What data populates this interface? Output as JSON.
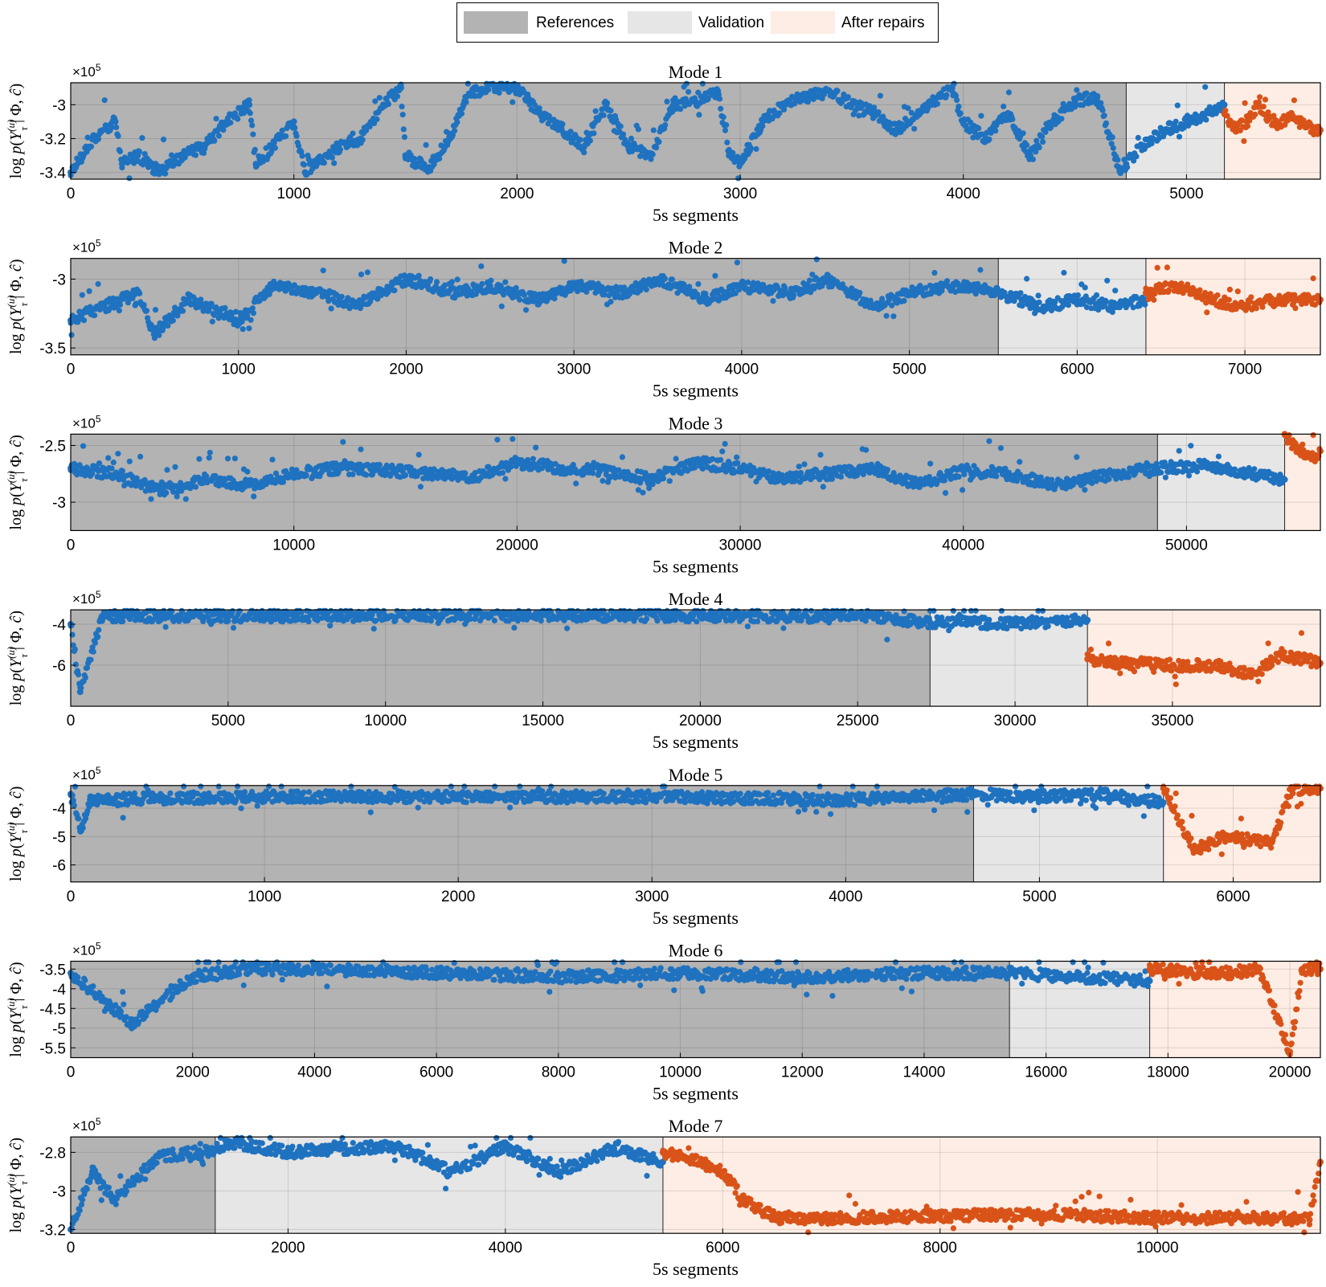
{
  "legend": {
    "references": "References",
    "validation": "Validation",
    "after_repairs": "After repairs"
  },
  "colors": {
    "references": "#b3b3b3",
    "validation": "#e6e6e6",
    "after_repairs": "#fdede4",
    "series_normal": "#1f72bf",
    "series_repaired": "#d95319"
  },
  "chart_data": [
    {
      "type": "scatter",
      "title": "Mode 1",
      "xlabel": "5s segments",
      "ylabel": "log p(Y_τ^(u) | Φ, ĉ)",
      "exponent": "×10^5",
      "xlim": [
        0,
        5600
      ],
      "ylim": [
        -3.44,
        -2.87
      ],
      "xticks": [
        0,
        1000,
        2000,
        3000,
        4000,
        5000
      ],
      "yticks": [
        -3.4,
        -3.2,
        -3.0
      ],
      "ytick_labels": [
        "-3.4",
        "-3.2",
        "-3"
      ],
      "regions": [
        {
          "name": "References",
          "from": 0,
          "to": 4730
        },
        {
          "name": "Validation",
          "from": 4730,
          "to": 5170
        },
        {
          "name": "After repairs",
          "from": 5170,
          "to": 5600
        }
      ],
      "series": [
        {
          "role": "normal",
          "x": [
            0,
            100,
            200,
            230,
            300,
            400,
            500,
            600,
            700,
            800,
            830,
            900,
            1000,
            1050,
            1100,
            1200,
            1300,
            1400,
            1480,
            1500,
            1600,
            1700,
            1760,
            1800,
            1900,
            2000,
            2100,
            2200,
            2300,
            2400,
            2500,
            2600,
            2700,
            2800,
            2900,
            2950,
            3000,
            3100,
            3200,
            3300,
            3400,
            3500,
            3600,
            3700,
            3800,
            3900,
            3950,
            4000,
            4100,
            4200,
            4300,
            4400,
            4500,
            4600,
            4700,
            4730,
            4800,
            4900,
            5000,
            5100,
            5170
          ],
          "y": [
            -3.4,
            -3.2,
            -3.1,
            -3.35,
            -3.3,
            -3.4,
            -3.3,
            -3.25,
            -3.1,
            -3.0,
            -3.35,
            -3.25,
            -3.1,
            -3.4,
            -3.35,
            -3.25,
            -3.2,
            -3.0,
            -2.9,
            -3.3,
            -3.38,
            -3.2,
            -3.0,
            -2.92,
            -2.9,
            -2.9,
            -3.05,
            -3.15,
            -3.25,
            -3.0,
            -3.25,
            -3.3,
            -3.0,
            -2.98,
            -2.92,
            -3.3,
            -3.35,
            -3.1,
            -3.0,
            -2.95,
            -2.92,
            -3.0,
            -3.05,
            -3.15,
            -3.05,
            -2.95,
            -2.9,
            -3.1,
            -3.2,
            -3.05,
            -3.3,
            -3.1,
            -2.98,
            -2.95,
            -3.38,
            -3.35,
            -3.25,
            -3.15,
            -3.1,
            -3.05,
            -3.0
          ]
        },
        {
          "role": "repaired",
          "x": [
            5170,
            5220,
            5270,
            5320,
            5370,
            5420,
            5470,
            5520,
            5570,
            5600
          ],
          "y": [
            -3.05,
            -3.15,
            -3.1,
            -3.0,
            -3.08,
            -3.12,
            -3.05,
            -3.12,
            -3.15,
            -3.15
          ]
        }
      ]
    },
    {
      "type": "scatter",
      "title": "Mode 2",
      "xlabel": "5s segments",
      "ylabel": "log p(Y_τ^(u) | Φ, ĉ)",
      "exponent": "×10^5",
      "xlim": [
        0,
        7450
      ],
      "ylim": [
        -3.55,
        -2.85
      ],
      "xticks": [
        0,
        1000,
        2000,
        3000,
        4000,
        5000,
        6000,
        7000
      ],
      "yticks": [
        -3.5,
        -3.0
      ],
      "ytick_labels": [
        "-3.5",
        "-3"
      ],
      "regions": [
        {
          "name": "References",
          "from": 0,
          "to": 5530
        },
        {
          "name": "Validation",
          "from": 5530,
          "to": 6410
        },
        {
          "name": "After repairs",
          "from": 6410,
          "to": 7450
        }
      ],
      "series": [
        {
          "role": "normal",
          "x": [
            0,
            200,
            400,
            500,
            700,
            1000,
            1200,
            1500,
            1700,
            2000,
            2300,
            2500,
            2800,
            3000,
            3300,
            3500,
            3800,
            4000,
            4300,
            4500,
            4800,
            5000,
            5300,
            5530,
            5800,
            6000,
            6200,
            6410
          ],
          "y": [
            -3.3,
            -3.2,
            -3.1,
            -3.4,
            -3.15,
            -3.3,
            -3.05,
            -3.1,
            -3.2,
            -3.0,
            -3.1,
            -3.05,
            -3.15,
            -3.05,
            -3.1,
            -3.0,
            -3.15,
            -3.05,
            -3.1,
            -3.0,
            -3.2,
            -3.1,
            -3.05,
            -3.1,
            -3.2,
            -3.15,
            -3.2,
            -3.15
          ]
        },
        {
          "role": "repaired",
          "x": [
            6410,
            6600,
            6800,
            7000,
            7200,
            7450
          ],
          "y": [
            -3.1,
            -3.05,
            -3.15,
            -3.2,
            -3.15,
            -3.15
          ]
        }
      ]
    },
    {
      "type": "scatter",
      "title": "Mode 3",
      "xlabel": "5s segments",
      "ylabel": "log p(Y_τ^(u) | Φ, ĉ)",
      "exponent": "×10^5",
      "xlim": [
        0,
        56000
      ],
      "ylim": [
        -3.25,
        -2.4
      ],
      "xticks": [
        0,
        10000,
        20000,
        30000,
        40000,
        50000
      ],
      "yticks": [
        -3.0,
        -2.5
      ],
      "ytick_labels": [
        "-3",
        "-2.5"
      ],
      "regions": [
        {
          "name": "References",
          "from": 0,
          "to": 48700
        },
        {
          "name": "Validation",
          "from": 48700,
          "to": 54400
        },
        {
          "name": "After repairs",
          "from": 54400,
          "to": 56000
        }
      ],
      "series": [
        {
          "role": "normal",
          "x": [
            0,
            2000,
            4000,
            6000,
            8000,
            10000,
            12000,
            14000,
            16000,
            18000,
            20000,
            22000,
            24000,
            26000,
            28000,
            30000,
            32000,
            34000,
            36000,
            38000,
            40000,
            42000,
            44000,
            46000,
            48700,
            51000,
            54400
          ],
          "y": [
            -2.7,
            -2.75,
            -2.9,
            -2.8,
            -2.85,
            -2.75,
            -2.7,
            -2.72,
            -2.75,
            -2.78,
            -2.65,
            -2.7,
            -2.72,
            -2.8,
            -2.65,
            -2.7,
            -2.8,
            -2.75,
            -2.7,
            -2.85,
            -2.72,
            -2.75,
            -2.85,
            -2.78,
            -2.7,
            -2.68,
            -2.8
          ]
        },
        {
          "role": "repaired",
          "x": [
            54400,
            55000,
            55600,
            56000
          ],
          "y": [
            -2.4,
            -2.55,
            -2.62,
            -2.55
          ]
        }
      ]
    },
    {
      "type": "scatter",
      "title": "Mode 4",
      "xlabel": "5s segments",
      "ylabel": "log p(Y_τ^(u) | Φ, ĉ)",
      "exponent": "×10^5",
      "xlim": [
        0,
        39700
      ],
      "ylim": [
        -8.0,
        -3.3
      ],
      "xticks": [
        0,
        5000,
        10000,
        15000,
        20000,
        25000,
        30000,
        35000
      ],
      "yticks": [
        -6,
        -4
      ],
      "ytick_labels": [
        "-6",
        "-4"
      ],
      "regions": [
        {
          "name": "References",
          "from": 0,
          "to": 27300
        },
        {
          "name": "Validation",
          "from": 27300,
          "to": 32300
        },
        {
          "name": "After repairs",
          "from": 32300,
          "to": 39700
        }
      ],
      "series": [
        {
          "role": "normal",
          "x": [
            0,
            300,
            1000,
            5000,
            10000,
            15000,
            20000,
            25000,
            27300,
            30000,
            32300
          ],
          "y": [
            -4.0,
            -7.3,
            -3.6,
            -3.6,
            -3.6,
            -3.55,
            -3.6,
            -3.6,
            -3.9,
            -3.95,
            -3.8
          ]
        },
        {
          "role": "repaired",
          "x": [
            32300,
            33000,
            35000,
            36500,
            37500,
            38500,
            39700
          ],
          "y": [
            -5.7,
            -5.85,
            -6.0,
            -6.05,
            -6.5,
            -5.5,
            -5.9
          ]
        }
      ]
    },
    {
      "type": "scatter",
      "title": "Mode 5",
      "xlabel": "5s segments",
      "ylabel": "log p(Y_τ^(u) | Φ, ĉ)",
      "exponent": "×10^5",
      "xlim": [
        0,
        6450
      ],
      "ylim": [
        -6.6,
        -3.2
      ],
      "xticks": [
        0,
        1000,
        2000,
        3000,
        4000,
        5000,
        6000
      ],
      "yticks": [
        -6,
        -5,
        -4
      ],
      "ytick_labels": [
        "-6",
        "-5",
        "-4"
      ],
      "regions": [
        {
          "name": "References",
          "from": 0,
          "to": 4660
        },
        {
          "name": "Validation",
          "from": 4660,
          "to": 5640
        },
        {
          "name": "After repairs",
          "from": 5640,
          "to": 6450
        }
      ],
      "series": [
        {
          "role": "normal",
          "x": [
            0,
            50,
            100,
            500,
            1000,
            2000,
            3000,
            4000,
            4660,
            5000,
            5300,
            5640
          ],
          "y": [
            -3.5,
            -4.8,
            -3.7,
            -3.65,
            -3.6,
            -3.6,
            -3.6,
            -3.7,
            -3.5,
            -3.6,
            -3.5,
            -3.8
          ]
        },
        {
          "role": "repaired",
          "x": [
            5640,
            5800,
            5950,
            6050,
            6200,
            6300,
            6450
          ],
          "y": [
            -3.3,
            -5.5,
            -5.0,
            -5.1,
            -5.2,
            -3.3,
            -3.3
          ]
        }
      ]
    },
    {
      "type": "scatter",
      "title": "Mode 6",
      "xlabel": "5s segments",
      "ylabel": "log p(Y_τ^(u) | Φ, ĉ)",
      "exponent": "×10^5",
      "xlim": [
        0,
        20500
      ],
      "ylim": [
        -5.75,
        -3.3
      ],
      "xticks": [
        0,
        2000,
        4000,
        6000,
        8000,
        10000,
        12000,
        14000,
        16000,
        18000,
        20000
      ],
      "yticks": [
        -5.5,
        -5.0,
        -4.5,
        -4.0,
        -3.5
      ],
      "ytick_labels": [
        "-5.5",
        "-5",
        "-4.5",
        "-4",
        "-3.5"
      ],
      "regions": [
        {
          "name": "References",
          "from": 0,
          "to": 15400
        },
        {
          "name": "Validation",
          "from": 15400,
          "to": 17700
        },
        {
          "name": "After repairs",
          "from": 17700,
          "to": 20500
        }
      ],
      "series": [
        {
          "role": "normal",
          "x": [
            0,
            1000,
            2000,
            3000,
            4000,
            6000,
            8000,
            10000,
            12000,
            14000,
            15400,
            16500,
            17700
          ],
          "y": [
            -3.6,
            -4.9,
            -3.7,
            -3.5,
            -3.5,
            -3.6,
            -3.7,
            -3.6,
            -3.7,
            -3.6,
            -3.6,
            -3.7,
            -3.8
          ]
        },
        {
          "role": "repaired",
          "x": [
            17700,
            18500,
            19000,
            19500,
            20000,
            20200,
            20500
          ],
          "y": [
            -3.5,
            -3.6,
            -3.6,
            -3.5,
            -5.6,
            -3.5,
            -3.5
          ]
        }
      ]
    },
    {
      "type": "scatter",
      "title": "Mode 7",
      "xlabel": "5s segments",
      "ylabel": "log p(Y_τ^(u) | Φ, ĉ)",
      "exponent": "×10^5",
      "xlim": [
        0,
        11500
      ],
      "ylim": [
        -3.22,
        -2.72
      ],
      "xticks": [
        0,
        2000,
        4000,
        6000,
        8000,
        10000
      ],
      "yticks": [
        -3.2,
        -3.0,
        -2.8
      ],
      "ytick_labels": [
        "-3.2",
        "-3",
        "-2.8"
      ],
      "regions": [
        {
          "name": "References",
          "from": 0,
          "to": 1330
        },
        {
          "name": "Validation",
          "from": 1330,
          "to": 5450
        },
        {
          "name": "After repairs",
          "from": 5450,
          "to": 11500
        }
      ],
      "series": [
        {
          "role": "normal",
          "x": [
            0,
            200,
            400,
            800,
            1200,
            1330,
            1500,
            2000,
            2500,
            3000,
            3500,
            4000,
            4500,
            5000,
            5450
          ],
          "y": [
            -3.2,
            -2.9,
            -3.05,
            -2.82,
            -2.8,
            -2.78,
            -2.75,
            -2.8,
            -2.78,
            -2.77,
            -2.9,
            -2.77,
            -2.9,
            -2.78,
            -2.85
          ]
        },
        {
          "role": "repaired",
          "x": [
            5450,
            5800,
            6000,
            6200,
            6500,
            7000,
            8000,
            9000,
            10000,
            11000,
            11400,
            11500
          ],
          "y": [
            -2.8,
            -2.85,
            -2.9,
            -3.05,
            -3.14,
            -3.14,
            -3.13,
            -3.12,
            -3.14,
            -3.14,
            -3.15,
            -2.85
          ]
        }
      ]
    }
  ]
}
